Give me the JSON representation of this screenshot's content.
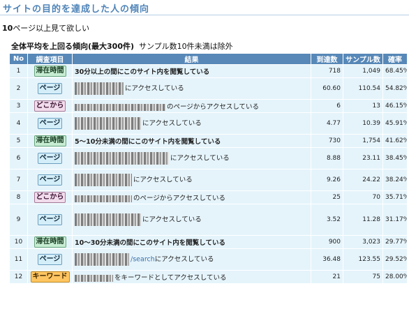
{
  "header": {
    "title": "サイトの目的を達成した人の傾向"
  },
  "goal": {
    "count": "10",
    "text": "ページ以上見て欲しい"
  },
  "subtitle": {
    "bold": "全体平均を上回る傾向(最大300件)",
    "note": "サンプル数10件未満は除外"
  },
  "table": {
    "headers": [
      "No",
      "調査項目",
      "結果",
      "到達数",
      "サンプル数",
      "確率"
    ],
    "rows": [
      {
        "no": "1",
        "cat": "滞在時間",
        "cat_type": "stay",
        "result": "30分以上の間にこのサイト内を閲覧している",
        "bold": true,
        "blur": false,
        "url": "",
        "tall": false,
        "reach": "718",
        "samples": "1,049",
        "rate": "68.45%"
      },
      {
        "no": "2",
        "cat": "ページ",
        "cat_type": "page",
        "result": "にアクセスしている",
        "bold": false,
        "blur": true,
        "url": "",
        "tall": true,
        "reach": "60.60",
        "samples": "110.54",
        "rate": "54.82%"
      },
      {
        "no": "3",
        "cat": "どこから",
        "cat_type": "from",
        "result": "のページからアクセスしている",
        "bold": false,
        "blur": true,
        "url": "",
        "tall": false,
        "reach": "6",
        "samples": "13",
        "rate": "46.15%"
      },
      {
        "no": "4",
        "cat": "ページ",
        "cat_type": "page",
        "result": "にアクセスしている",
        "bold": false,
        "blur": true,
        "url": "",
        "tall": true,
        "reach": "4.77",
        "samples": "10.39",
        "rate": "45.91%"
      },
      {
        "no": "5",
        "cat": "滞在時間",
        "cat_type": "stay",
        "result": "5～10分未満の間にこのサイト内を閲覧している",
        "bold": true,
        "blur": false,
        "url": "",
        "tall": false,
        "reach": "730",
        "samples": "1,754",
        "rate": "41.62%"
      },
      {
        "no": "6",
        "cat": "ページ",
        "cat_type": "page",
        "result": "にアクセスしている",
        "bold": false,
        "blur": true,
        "url": "",
        "tall": true,
        "reach": "8.88",
        "samples": "23.11",
        "rate": "38.45%"
      },
      {
        "no": "7",
        "cat": "ページ",
        "cat_type": "page",
        "result": "にアクセスしている",
        "bold": false,
        "blur": true,
        "url": "",
        "tall": true,
        "reach": "9.26",
        "samples": "24.22",
        "rate": "38.24%"
      },
      {
        "no": "8",
        "cat": "どこから",
        "cat_type": "from",
        "result": "のページからアクセスしている",
        "bold": false,
        "blur": true,
        "url": "",
        "tall": false,
        "reach": "25",
        "samples": "70",
        "rate": "35.71%"
      },
      {
        "no": "9",
        "cat": "ページ",
        "cat_type": "page",
        "result": "にアクセスしている",
        "bold": false,
        "blur": true,
        "url": "",
        "tall": true,
        "reach": "3.52",
        "samples": "11.28",
        "rate": "31.17%"
      },
      {
        "no": "10",
        "cat": "滞在時間",
        "cat_type": "stay",
        "result": "10～30分未満の間にこのサイト内を閲覧している",
        "bold": true,
        "blur": false,
        "url": "",
        "tall": false,
        "reach": "900",
        "samples": "3,023",
        "rate": "29.77%"
      },
      {
        "no": "11",
        "cat": "ページ",
        "cat_type": "page",
        "result": "にアクセスしている",
        "bold": false,
        "blur": true,
        "url": "/search",
        "tall": true,
        "reach": "36.48",
        "samples": "123.55",
        "rate": "29.52%"
      },
      {
        "no": "12",
        "cat": "キーワード",
        "cat_type": "kw",
        "result": "をキーワードとしてアクセスしている",
        "bold": false,
        "blur": true,
        "url": "",
        "tall": false,
        "reach": "21",
        "samples": "75",
        "rate": "28.00%"
      }
    ]
  },
  "colors": {
    "title": "#4f84b8",
    "header_bg": "#5788b8",
    "row_bg": "#e5f4fb",
    "stay_badge": "#c6ecd2",
    "page_badge": "#d4eef9",
    "from_badge": "#f1dcec",
    "keyword_badge": "#ffc561"
  }
}
